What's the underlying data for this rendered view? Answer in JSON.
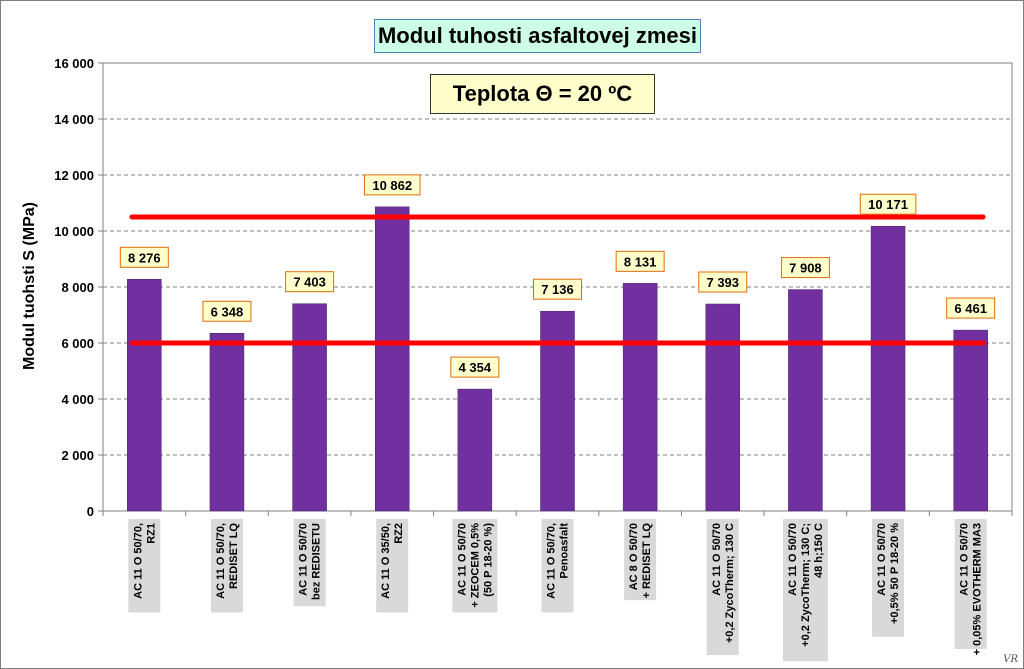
{
  "title": "Modul tuhosti asfaltovej zmesi",
  "temperature_label": "Teplota  Θ = 20 ºC",
  "credit": "VR",
  "chart_data": {
    "type": "bar",
    "title": "Modul tuhosti asfaltovej zmesi",
    "ylabel": "Modul tuohsti S   (MPa)",
    "xlabel": "",
    "ylim": [
      0,
      16000
    ],
    "y_ticks": [
      0,
      2000,
      4000,
      6000,
      8000,
      10000,
      12000,
      14000,
      16000
    ],
    "y_tick_labels": [
      "0",
      "2 000",
      "4 000",
      "6 000",
      "8 000",
      "10 000",
      "12 000",
      "14 000",
      "16 000"
    ],
    "grid": "horizontal dashed",
    "bar_color": "#7030a0",
    "reference_line_color": "#ff0000",
    "reference_lines": [
      6000,
      10500
    ],
    "categories": [
      "AC 11 O 50/70,|RZ1",
      "AC 11 O 50/70,|REDISET LQ",
      "AC 11 O 50/70|bez REDISETU",
      "AC 11 O 35/50,|RZ2",
      "AC 11 O 50/70|+ ZEOCEM 0,5%|(50 P 18-20 %)",
      "AC 11 O 50/70,|Penoasfalt",
      "AC 8 O 50/70|+ REDISET LQ",
      "AC 11 O 50/70|+0,2 ZycoTherm; 130 C",
      "AC 11 O 50/70|+0,2 ZycoTherm; 130 C;|48 h;150 C",
      "AC 11 O 50/70|+0,5% 50 P 18-20 %",
      "AC 11 O 50/70|+ 0,05% EVOTHERM MA3"
    ],
    "values": [
      8276,
      6348,
      7403,
      10862,
      4354,
      7136,
      8131,
      7393,
      7908,
      10171,
      6461
    ],
    "value_labels": [
      "8 276",
      "6 348",
      "7 403",
      "10 862",
      "4 354",
      "7 136",
      "8 131",
      "7 393",
      "7 908",
      "10 171",
      "6 461"
    ]
  }
}
